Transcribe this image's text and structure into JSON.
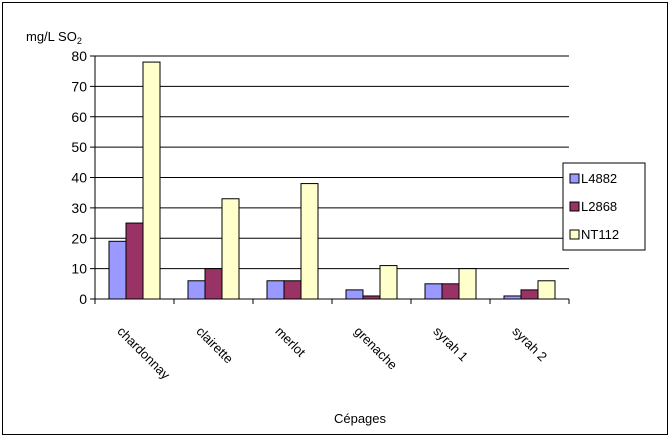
{
  "chart_data": {
    "type": "bar",
    "title": "",
    "ylabel_main": "mg/L  SO",
    "ylabel_sub": "2",
    "xlabel": "Cépages",
    "ylim": [
      0,
      80
    ],
    "yticks": [
      "0",
      "10",
      "20",
      "30",
      "40",
      "50",
      "60",
      "70",
      "80"
    ],
    "grid": true,
    "legend_position": "right",
    "categories": [
      "chardonnay",
      "clairette",
      "merlot",
      "grenache",
      "syrah 1",
      "syrah 2"
    ],
    "series": [
      {
        "name": "L4882",
        "color": "#9999ff",
        "values": [
          19,
          6,
          6,
          3,
          5,
          1
        ]
      },
      {
        "name": "L2868",
        "color": "#993366",
        "values": [
          25,
          10,
          6,
          1,
          5,
          3
        ]
      },
      {
        "name": "NT112",
        "color": "#ffffcc",
        "values": [
          78,
          33,
          38,
          11,
          10,
          6
        ]
      }
    ]
  }
}
